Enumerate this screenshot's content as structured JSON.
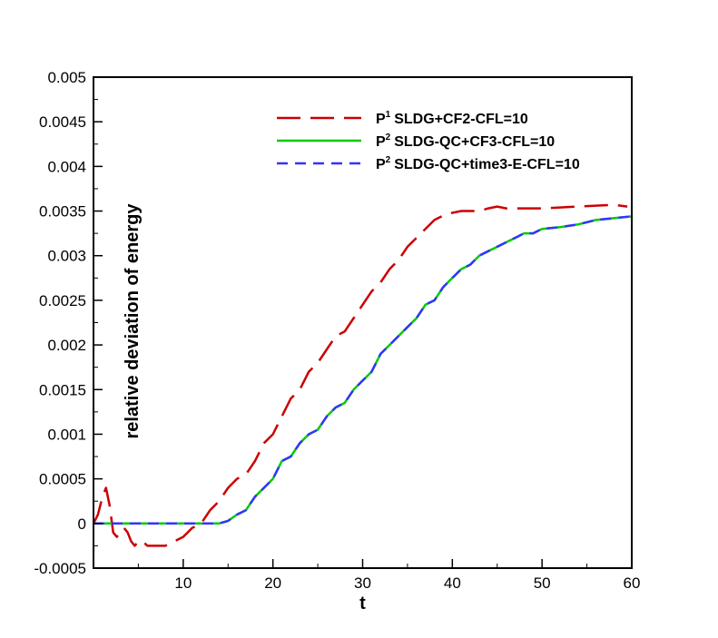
{
  "chart_data": {
    "type": "line",
    "title": "",
    "xlabel": "t",
    "ylabel": "relative deviation of energy",
    "xlim": [
      0,
      60
    ],
    "ylim": [
      -0.0005,
      0.005
    ],
    "xticks": [
      "10",
      "20",
      "30",
      "40",
      "50",
      "60"
    ],
    "yticks": [
      "-0.0005",
      "0",
      "0.0005",
      "0.001",
      "0.0015",
      "0.002",
      "0.0025",
      "0.003",
      "0.0035",
      "0.004",
      "0.0045",
      "0.005"
    ],
    "grid": false,
    "legend_position": "top-right",
    "series": [
      {
        "name": "SLDG+CF2-CFL=10",
        "name_prefix": "P",
        "name_sup": "1",
        "color": "#cc0000",
        "style": "long-dash",
        "x": [
          0.0,
          0.5,
          1.0,
          1.4,
          1.8,
          2.2,
          2.6,
          3.0,
          3.4,
          3.8,
          4.2,
          4.6,
          5.0,
          5.5,
          6.0,
          7.0,
          8.0,
          9.0,
          10.0,
          11.0,
          12.0,
          13.0,
          14.0,
          15.0,
          16.0,
          17.0,
          18.0,
          19.0,
          20.0,
          21.0,
          22.0,
          23.0,
          24.0,
          25.0,
          26.0,
          27.0,
          28.0,
          29.0,
          30.0,
          31.0,
          32.0,
          33.0,
          34.0,
          35.0,
          36.0,
          37.0,
          38.0,
          39.0,
          40.0,
          41.0,
          42.0,
          43.0,
          44.0,
          45.0,
          46.0,
          48.0,
          50.0,
          52.0,
          54.0,
          56.0,
          58.0,
          59.5
        ],
        "y": [
          0.0,
          0.0001,
          0.0003,
          0.0004,
          0.0002,
          -0.0001,
          -0.00015,
          -0.0001,
          -5e-05,
          -0.0001,
          -0.0002,
          -0.00025,
          -0.0002,
          -0.0002,
          -0.00025,
          -0.00025,
          -0.00025,
          -0.0002,
          -0.00015,
          -5e-05,
          0.0,
          0.00015,
          0.00025,
          0.0004,
          0.0005,
          0.00055,
          0.0007,
          0.0009,
          0.001,
          0.0012,
          0.0014,
          0.0015,
          0.0017,
          0.0018,
          0.00195,
          0.0021,
          0.00215,
          0.0023,
          0.00245,
          0.0026,
          0.0027,
          0.00285,
          0.00295,
          0.0031,
          0.0032,
          0.0033,
          0.0034,
          0.00345,
          0.00348,
          0.0035,
          0.0035,
          0.0035,
          0.00353,
          0.00355,
          0.00353,
          0.00353,
          0.00353,
          0.00354,
          0.00355,
          0.00356,
          0.00357,
          0.00355
        ]
      },
      {
        "name": "SLDG-QC+CF3-CFL=10",
        "name_prefix": "P",
        "name_sup": "2",
        "color": "#00cc00",
        "style": "solid",
        "x": [
          0.0,
          2.0,
          4.0,
          6.0,
          8.0,
          10.0,
          12.0,
          13.0,
          14.0,
          15.0,
          16.0,
          17.0,
          18.0,
          19.0,
          20.0,
          21.0,
          22.0,
          23.0,
          24.0,
          25.0,
          26.0,
          27.0,
          28.0,
          29.0,
          30.0,
          31.0,
          32.0,
          33.0,
          34.0,
          35.0,
          36.0,
          37.0,
          38.0,
          39.0,
          40.0,
          41.0,
          42.0,
          43.0,
          44.0,
          45.0,
          46.0,
          47.0,
          48.0,
          49.0,
          50.0,
          52.0,
          54.0,
          56.0,
          58.0,
          60.0
        ],
        "y": [
          0.0,
          0.0,
          0.0,
          0.0,
          0.0,
          0.0,
          0.0,
          0.0,
          0.0,
          3e-05,
          0.0001,
          0.00015,
          0.0003,
          0.0004,
          0.0005,
          0.0007,
          0.00075,
          0.0009,
          0.001,
          0.00105,
          0.0012,
          0.0013,
          0.00135,
          0.0015,
          0.0016,
          0.0017,
          0.0019,
          0.002,
          0.0021,
          0.0022,
          0.0023,
          0.00245,
          0.0025,
          0.00265,
          0.00275,
          0.00285,
          0.0029,
          0.003,
          0.00305,
          0.0031,
          0.00315,
          0.0032,
          0.00325,
          0.00325,
          0.0033,
          0.00332,
          0.00335,
          0.0034,
          0.00342,
          0.00344
        ]
      },
      {
        "name": "SLDG-QC+time3-E-CFL=10",
        "name_prefix": "P",
        "name_sup": "2",
        "color": "#3333ff",
        "style": "short-dash",
        "x": [
          0.0,
          2.0,
          4.0,
          6.0,
          8.0,
          10.0,
          12.0,
          13.0,
          14.0,
          15.0,
          16.0,
          17.0,
          18.0,
          19.0,
          20.0,
          21.0,
          22.0,
          23.0,
          24.0,
          25.0,
          26.0,
          27.0,
          28.0,
          29.0,
          30.0,
          31.0,
          32.0,
          33.0,
          34.0,
          35.0,
          36.0,
          37.0,
          38.0,
          39.0,
          40.0,
          41.0,
          42.0,
          43.0,
          44.0,
          45.0,
          46.0,
          47.0,
          48.0,
          49.0,
          50.0,
          52.0,
          54.0,
          56.0,
          58.0,
          60.0
        ],
        "y": [
          0.0,
          0.0,
          0.0,
          0.0,
          0.0,
          0.0,
          0.0,
          0.0,
          0.0,
          3e-05,
          0.0001,
          0.00015,
          0.0003,
          0.0004,
          0.0005,
          0.0007,
          0.00075,
          0.0009,
          0.001,
          0.00105,
          0.0012,
          0.0013,
          0.00135,
          0.0015,
          0.0016,
          0.0017,
          0.0019,
          0.002,
          0.0021,
          0.0022,
          0.0023,
          0.00245,
          0.0025,
          0.00265,
          0.00275,
          0.00285,
          0.0029,
          0.003,
          0.00305,
          0.0031,
          0.00315,
          0.0032,
          0.00325,
          0.00325,
          0.0033,
          0.00332,
          0.00335,
          0.0034,
          0.00342,
          0.00344
        ]
      }
    ]
  }
}
